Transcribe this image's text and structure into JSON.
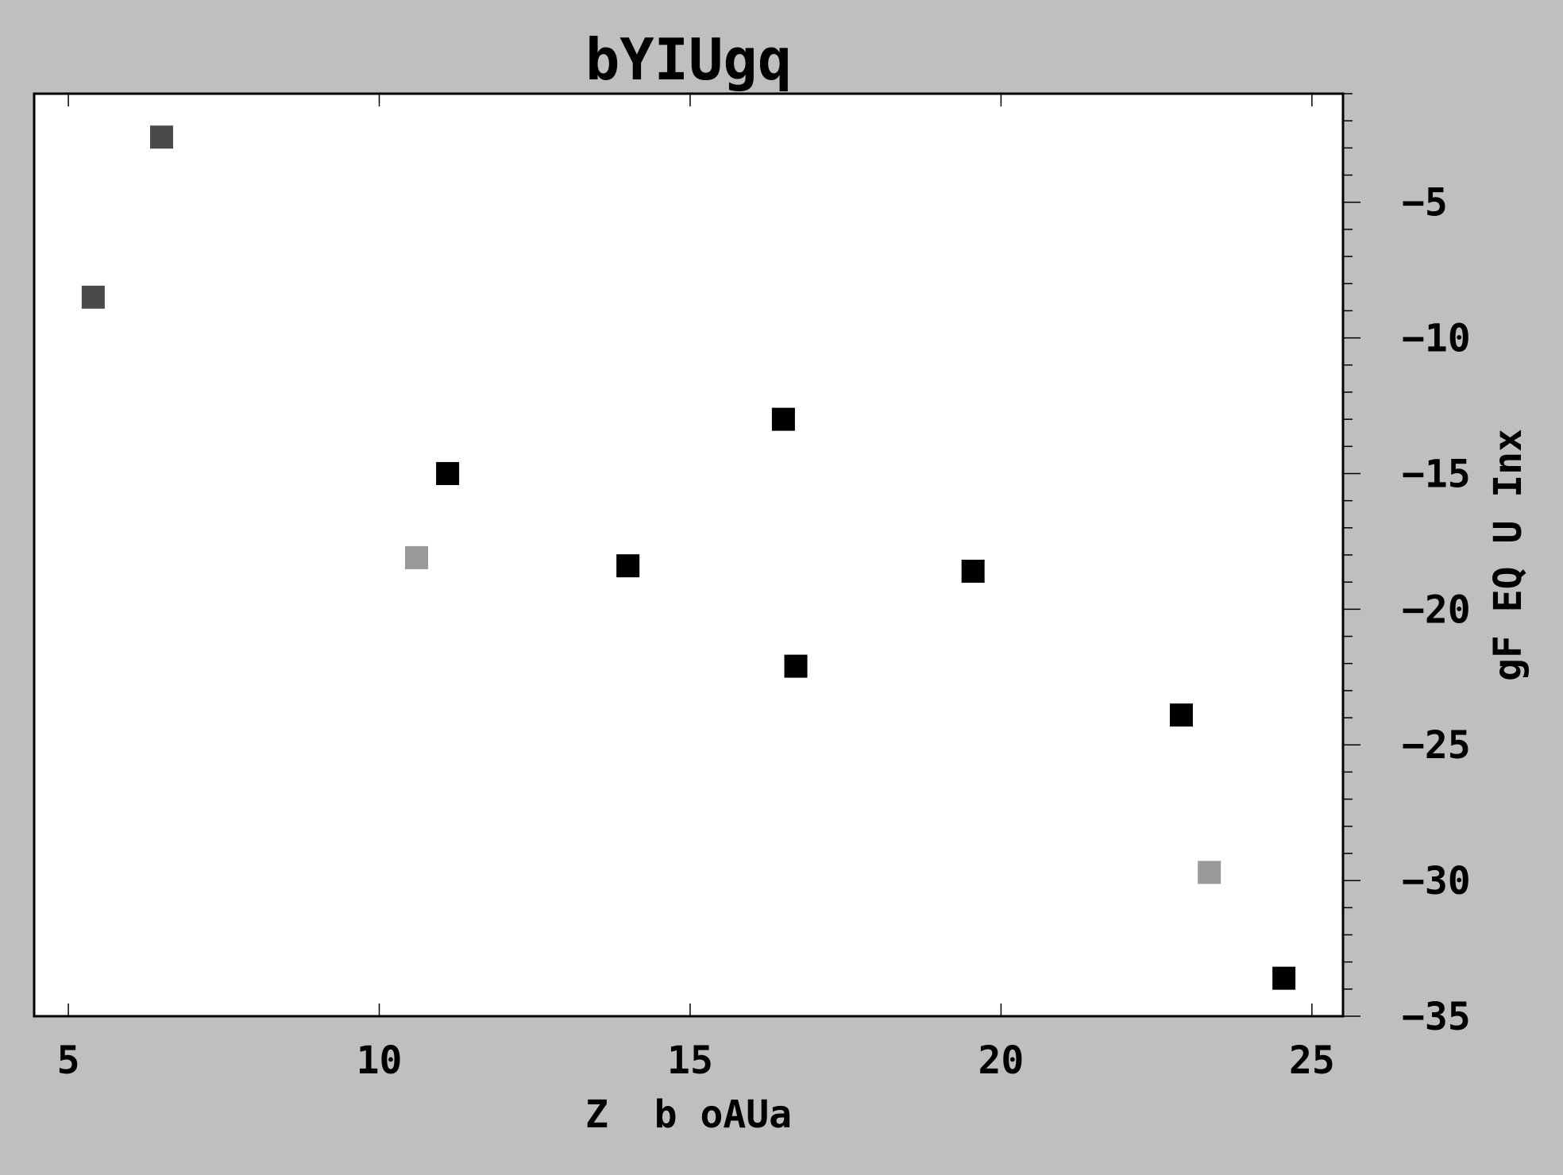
{
  "chart_data": {
    "type": "scatter",
    "title": "bYIUgq",
    "xlabel": "Z  b oAUa",
    "ylabel": "gF EQ U Inx",
    "xlim": [
      4.45,
      25.5
    ],
    "ylim": [
      -35,
      -1
    ],
    "x_ticks": [
      5,
      10,
      15,
      20,
      25
    ],
    "y_ticks": [
      -5,
      -10,
      -15,
      -20,
      -25,
      -30,
      -35
    ],
    "y_tick_labels": [
      "−5",
      "−10",
      "−15",
      "−20",
      "−25",
      "−30",
      "−35"
    ],
    "y_minor_step": 1,
    "y_axis_side": "right",
    "grid": false,
    "colors": {
      "background": "#bfbfbf",
      "plot_area": "#ffffff",
      "dark_gray": "#4a4a4a",
      "black": "#000000",
      "light_gray": "#999999"
    },
    "series": [
      {
        "color": "#4a4a4a",
        "points": [
          {
            "x": 5.4,
            "y": -8.5
          },
          {
            "x": 6.5,
            "y": -2.6
          }
        ]
      },
      {
        "color": "#000000",
        "points": [
          {
            "x": 11.1,
            "y": -15.0
          },
          {
            "x": 14.0,
            "y": -18.4
          },
          {
            "x": 16.5,
            "y": -13.0
          },
          {
            "x": 16.7,
            "y": -22.1
          },
          {
            "x": 19.55,
            "y": -18.6
          },
          {
            "x": 22.9,
            "y": -23.9
          },
          {
            "x": 24.55,
            "y": -33.6
          }
        ]
      },
      {
        "color": "#999999",
        "points": [
          {
            "x": 10.6,
            "y": -18.1
          },
          {
            "x": 23.35,
            "y": -29.7
          }
        ]
      }
    ]
  }
}
